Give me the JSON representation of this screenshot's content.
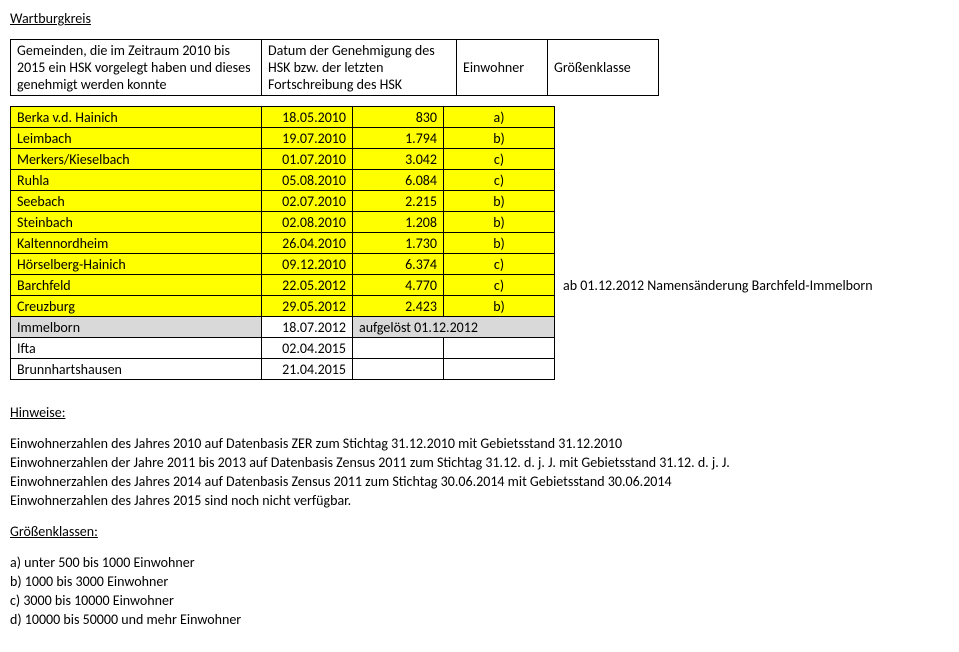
{
  "title": "Wartburgkreis",
  "header": {
    "col0": "Gemeinden,\ndie im Zeitraum 2010 bis 2015 ein HSK vorgelegt haben und dieses genehmigt werden konnte",
    "col1": "Datum der\nGenehmigung des HSK bzw. der letzten Fortschreibung des HSK",
    "col2": "Einwohner",
    "col3": "Größenklasse"
  },
  "rows": [
    {
      "style": "yellow",
      "name": "Berka v.d. Hainich",
      "date": "18.05.2010",
      "pop": "830",
      "cls": "a)",
      "annot": ""
    },
    {
      "style": "yellow",
      "name": "Leimbach",
      "date": "19.07.2010",
      "pop": "1.794",
      "cls": "b)",
      "annot": ""
    },
    {
      "style": "yellow",
      "name": "Merkers/Kieselbach",
      "date": "01.07.2010",
      "pop": "3.042",
      "cls": "c)",
      "annot": ""
    },
    {
      "style": "yellow",
      "name": "Ruhla",
      "date": "05.08.2010",
      "pop": "6.084",
      "cls": "c)",
      "annot": ""
    },
    {
      "style": "yellow",
      "name": "Seebach",
      "date": "02.07.2010",
      "pop": "2.215",
      "cls": "b)",
      "annot": ""
    },
    {
      "style": "yellow",
      "name": "Steinbach",
      "date": "02.08.2010",
      "pop": "1.208",
      "cls": "b)",
      "annot": ""
    },
    {
      "style": "yellow",
      "name": "Kaltennordheim",
      "date": "26.04.2010",
      "pop": "1.730",
      "cls": "b)",
      "annot": ""
    },
    {
      "style": "yellow",
      "name": "Hörselberg-Hainich",
      "date": "09.12.2010",
      "pop": "6.374",
      "cls": "c)",
      "annot": ""
    },
    {
      "style": "yellow",
      "name": "Barchfeld",
      "date": "22.05.2012",
      "pop": "4.770",
      "cls": "c)",
      "annot": "ab 01.12.2012 Namensänderung Barchfeld-Immelborn"
    },
    {
      "style": "yellow",
      "name": "Creuzburg",
      "date": "29.05.2012",
      "pop": "2.423",
      "cls": "b)",
      "annot": ""
    },
    {
      "style": "gray",
      "name": "Immelborn",
      "date": "18.07.2012",
      "merged": "aufgelöst 01.12.2012",
      "annot": ""
    },
    {
      "style": "plain",
      "name": "Ifta",
      "date": "02.04.2015",
      "pop": "",
      "cls": "",
      "annot": ""
    },
    {
      "style": "plain",
      "name": "Brunnhartshausen",
      "date": "21.04.2015",
      "pop": "",
      "cls": "",
      "annot": ""
    }
  ],
  "hints": {
    "title": "Hinweise:",
    "lines": [
      "Einwohnerzahlen des Jahres 2010 auf Datenbasis ZER zum Stichtag 31.12.2010 mit Gebietsstand 31.12.2010",
      "Einwohnerzahlen der Jahre 2011 bis 2013 auf Datenbasis Zensus 2011 zum Stichtag 31.12. d. j. J. mit Gebietsstand 31.12. d. j. J.",
      "Einwohnerzahlen des Jahres 2014 auf Datenbasis Zensus 2011 zum Stichtag 30.06.2014 mit Gebietsstand 30.06.2014",
      "Einwohnerzahlen des Jahres 2015 sind noch nicht verfügbar."
    ],
    "classes_title": "Größenklassen:",
    "classes": [
      "a) unter 500 bis 1000 Einwohner",
      "b) 1000 bis 3000 Einwohner",
      "c) 3000 bis 10000 Einwohner",
      "d) 10000 bis 50000 und mehr Einwohner"
    ]
  }
}
